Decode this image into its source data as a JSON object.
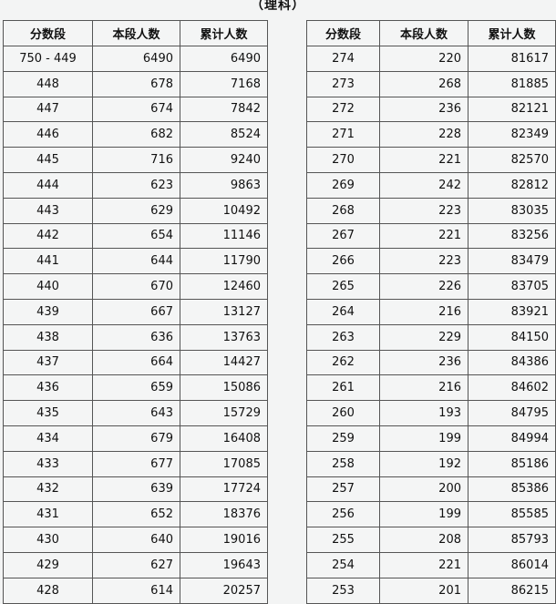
{
  "title": "（理科）",
  "headers": [
    "分数段",
    "本段人数",
    "累计人数"
  ],
  "left_rows": [
    [
      "750 - 449",
      "6490",
      "6490"
    ],
    [
      "448",
      "678",
      "7168"
    ],
    [
      "447",
      "674",
      "7842"
    ],
    [
      "446",
      "682",
      "8524"
    ],
    [
      "445",
      "716",
      "9240"
    ],
    [
      "444",
      "623",
      "9863"
    ],
    [
      "443",
      "629",
      "10492"
    ],
    [
      "442",
      "654",
      "11146"
    ],
    [
      "441",
      "644",
      "11790"
    ],
    [
      "440",
      "670",
      "12460"
    ],
    [
      "439",
      "667",
      "13127"
    ],
    [
      "438",
      "636",
      "13763"
    ],
    [
      "437",
      "664",
      "14427"
    ],
    [
      "436",
      "659",
      "15086"
    ],
    [
      "435",
      "643",
      "15729"
    ],
    [
      "434",
      "679",
      "16408"
    ],
    [
      "433",
      "677",
      "17085"
    ],
    [
      "432",
      "639",
      "17724"
    ],
    [
      "431",
      "652",
      "18376"
    ],
    [
      "430",
      "640",
      "19016"
    ],
    [
      "429",
      "627",
      "19643"
    ],
    [
      "428",
      "614",
      "20257"
    ]
  ],
  "right_rows": [
    [
      "274",
      "220",
      "81617"
    ],
    [
      "273",
      "268",
      "81885"
    ],
    [
      "272",
      "236",
      "82121"
    ],
    [
      "271",
      "228",
      "82349"
    ],
    [
      "270",
      "221",
      "82570"
    ],
    [
      "269",
      "242",
      "82812"
    ],
    [
      "268",
      "223",
      "83035"
    ],
    [
      "267",
      "221",
      "83256"
    ],
    [
      "266",
      "223",
      "83479"
    ],
    [
      "265",
      "226",
      "83705"
    ],
    [
      "264",
      "216",
      "83921"
    ],
    [
      "263",
      "229",
      "84150"
    ],
    [
      "262",
      "236",
      "84386"
    ],
    [
      "261",
      "216",
      "84602"
    ],
    [
      "260",
      "193",
      "84795"
    ],
    [
      "259",
      "199",
      "84994"
    ],
    [
      "258",
      "192",
      "85186"
    ],
    [
      "257",
      "200",
      "85386"
    ],
    [
      "256",
      "199",
      "85585"
    ],
    [
      "255",
      "208",
      "85793"
    ],
    [
      "254",
      "221",
      "86014"
    ],
    [
      "253",
      "201",
      "86215"
    ]
  ]
}
